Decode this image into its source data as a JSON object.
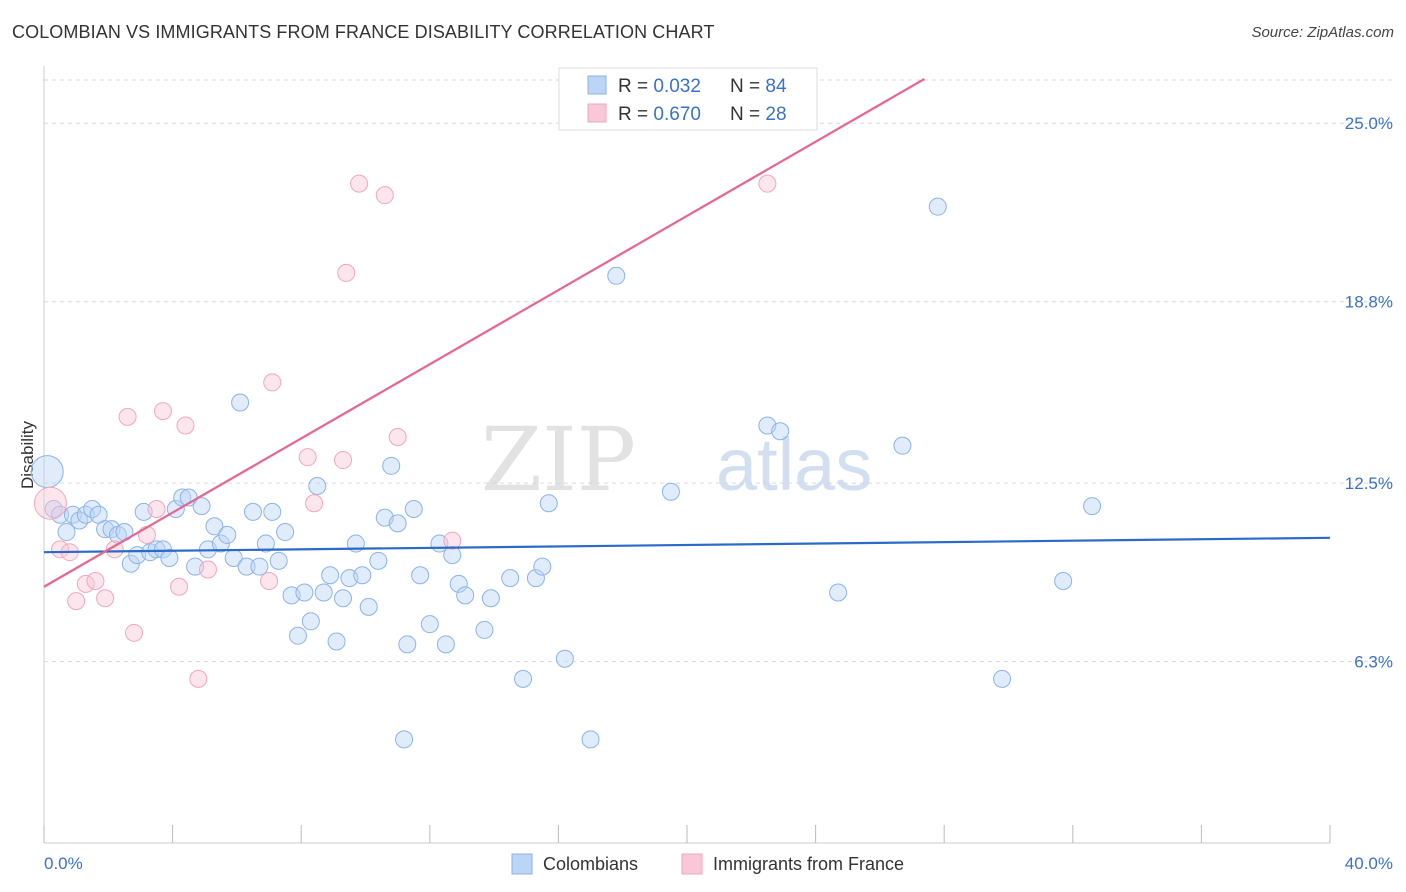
{
  "title": "COLOMBIAN VS IMMIGRANTS FROM FRANCE DISABILITY CORRELATION CHART",
  "source": "Source: ZipAtlas.com",
  "watermark": {
    "bold": "ZIP",
    "light": "atlas"
  },
  "colors": {
    "blue": "#8ab4e8",
    "blue_line": "#2a6ac8",
    "pink": "#f2a6c0",
    "pink_line": "#e8668e",
    "tick_text": "#3a72c8",
    "grid": "#d9d9d9"
  },
  "chart_data": {
    "type": "scatter",
    "xlabel": "",
    "ylabel": "Disability",
    "xlim": [
      0,
      40
    ],
    "ylim": [
      0,
      26.5
    ],
    "x_tick_labels": {
      "left": "0.0%",
      "right": "40.0%"
    },
    "y_ticks": [
      {
        "value": 6.3,
        "label": "6.3%"
      },
      {
        "value": 12.5,
        "label": "12.5%"
      },
      {
        "value": 18.8,
        "label": "18.8%"
      },
      {
        "value": 25.0,
        "label": "25.0%"
      }
    ],
    "legend": [
      {
        "r_label": "R = ",
        "r_value": "0.032",
        "n_label": "N = ",
        "n_value": "84"
      },
      {
        "r_label": "R = ",
        "r_value": "0.670",
        "n_label": "N = ",
        "n_value": "28"
      }
    ],
    "series": [
      {
        "name": "Colombians",
        "color": "#8ab4e8",
        "trend": {
          "x0": 0,
          "y0": 10.1,
          "x1": 40,
          "y1": 10.6
        },
        "points": [
          [
            0.1,
            12.9
          ],
          [
            0.3,
            11.6
          ],
          [
            0.5,
            11.4
          ],
          [
            0.7,
            10.8
          ],
          [
            0.9,
            11.4
          ],
          [
            1.1,
            11.2
          ],
          [
            1.3,
            11.4
          ],
          [
            1.5,
            11.6
          ],
          [
            1.7,
            11.4
          ],
          [
            1.9,
            10.9
          ],
          [
            2.1,
            10.9
          ],
          [
            2.3,
            10.7
          ],
          [
            2.5,
            10.8
          ],
          [
            2.7,
            9.7
          ],
          [
            2.9,
            10.0
          ],
          [
            3.1,
            11.5
          ],
          [
            3.3,
            10.1
          ],
          [
            3.5,
            10.2
          ],
          [
            3.7,
            10.2
          ],
          [
            3.9,
            9.9
          ],
          [
            4.1,
            11.6
          ],
          [
            4.3,
            12.0
          ],
          [
            4.5,
            12.0
          ],
          [
            4.7,
            9.6
          ],
          [
            4.9,
            11.7
          ],
          [
            5.1,
            10.2
          ],
          [
            5.3,
            11.0
          ],
          [
            5.5,
            10.4
          ],
          [
            5.7,
            10.7
          ],
          [
            5.9,
            9.9
          ],
          [
            6.1,
            15.3
          ],
          [
            6.3,
            9.6
          ],
          [
            6.5,
            11.5
          ],
          [
            6.7,
            9.6
          ],
          [
            6.9,
            10.4
          ],
          [
            7.1,
            11.5
          ],
          [
            7.3,
            9.8
          ],
          [
            7.5,
            10.8
          ],
          [
            7.7,
            8.6
          ],
          [
            7.9,
            7.2
          ],
          [
            8.1,
            8.7
          ],
          [
            8.3,
            7.7
          ],
          [
            8.5,
            12.4
          ],
          [
            8.7,
            8.7
          ],
          [
            8.9,
            9.3
          ],
          [
            9.1,
            7.0
          ],
          [
            9.3,
            8.5
          ],
          [
            9.5,
            9.2
          ],
          [
            9.7,
            10.4
          ],
          [
            9.9,
            9.3
          ],
          [
            10.1,
            8.2
          ],
          [
            10.4,
            9.8
          ],
          [
            10.6,
            11.3
          ],
          [
            10.8,
            13.1
          ],
          [
            11.0,
            11.1
          ],
          [
            11.2,
            3.6
          ],
          [
            11.3,
            6.9
          ],
          [
            11.5,
            11.6
          ],
          [
            11.7,
            9.3
          ],
          [
            12.0,
            7.6
          ],
          [
            12.3,
            10.4
          ],
          [
            12.5,
            6.9
          ],
          [
            12.7,
            10.0
          ],
          [
            12.9,
            9.0
          ],
          [
            13.1,
            8.6
          ],
          [
            13.7,
            7.4
          ],
          [
            13.9,
            8.5
          ],
          [
            14.5,
            9.2
          ],
          [
            14.9,
            5.7
          ],
          [
            15.3,
            9.2
          ],
          [
            15.5,
            9.6
          ],
          [
            15.7,
            11.8
          ],
          [
            16.2,
            6.4
          ],
          [
            17.0,
            3.6
          ],
          [
            17.8,
            19.7
          ],
          [
            19.5,
            12.2
          ],
          [
            22.5,
            14.5
          ],
          [
            22.9,
            14.3
          ],
          [
            24.7,
            8.7
          ],
          [
            26.7,
            13.8
          ],
          [
            27.8,
            22.1
          ],
          [
            29.8,
            5.7
          ],
          [
            31.7,
            9.1
          ],
          [
            32.6,
            11.7
          ]
        ]
      },
      {
        "name": "Immigrants from France",
        "color": "#f2a6c0",
        "trend": {
          "x0": 0,
          "y0": 8.9,
          "x1": 25.0,
          "y1": 25.0
        },
        "points": [
          [
            0.2,
            11.8
          ],
          [
            0.5,
            10.2
          ],
          [
            0.8,
            10.1
          ],
          [
            1.0,
            8.4
          ],
          [
            1.3,
            9.0
          ],
          [
            1.6,
            9.1
          ],
          [
            1.9,
            8.5
          ],
          [
            2.2,
            10.2
          ],
          [
            2.6,
            14.8
          ],
          [
            2.8,
            7.3
          ],
          [
            3.2,
            10.7
          ],
          [
            3.5,
            11.6
          ],
          [
            3.7,
            15.0
          ],
          [
            4.2,
            8.9
          ],
          [
            4.4,
            14.5
          ],
          [
            4.8,
            5.7
          ],
          [
            5.1,
            9.5
          ],
          [
            7.0,
            9.1
          ],
          [
            7.1,
            16.0
          ],
          [
            8.2,
            13.4
          ],
          [
            8.4,
            11.8
          ],
          [
            9.3,
            13.3
          ],
          [
            9.4,
            19.8
          ],
          [
            9.8,
            22.9
          ],
          [
            10.6,
            22.5
          ],
          [
            11.0,
            14.1
          ],
          [
            12.7,
            10.5
          ],
          [
            22.5,
            22.9
          ]
        ]
      }
    ]
  }
}
